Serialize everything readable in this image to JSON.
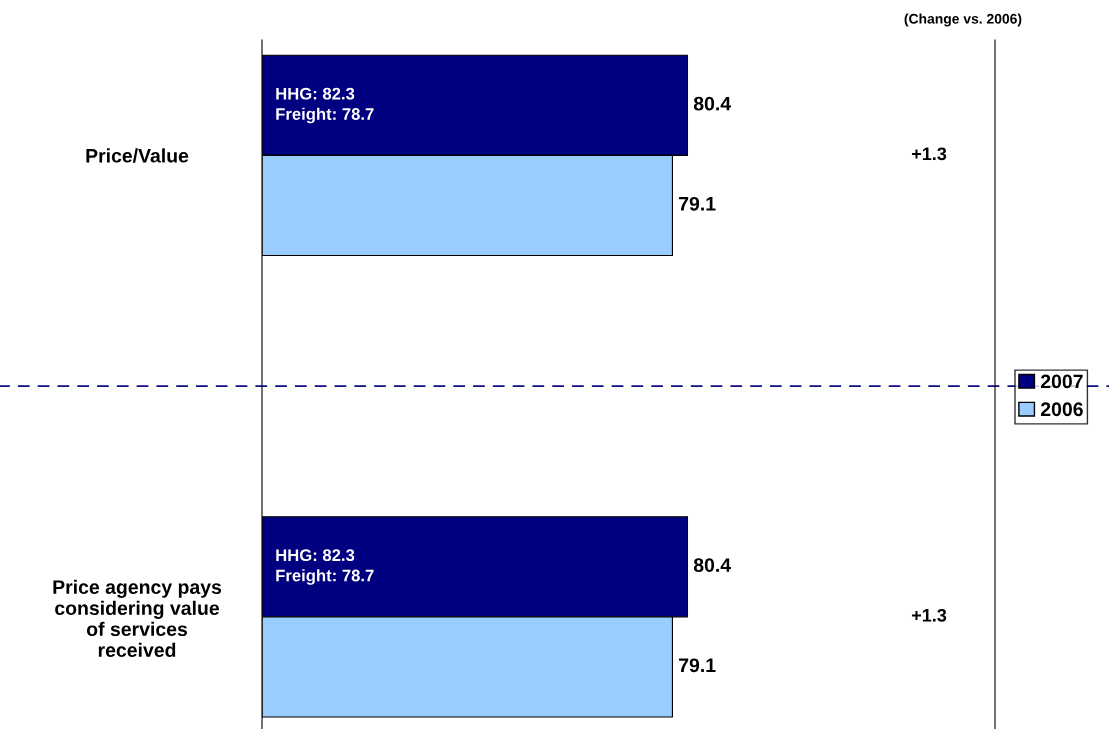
{
  "chart_data": {
    "type": "bar",
    "orientation": "horizontal",
    "categories": [
      "Price/Value",
      "Price agency pays\nconsidering value\nof services\nreceived"
    ],
    "series": [
      {
        "name": "2007",
        "color": "#000080",
        "values": [
          80.4,
          80.4
        ]
      },
      {
        "name": "2006",
        "color": "#99ccff",
        "values": [
          79.1,
          79.1
        ]
      }
    ],
    "xlim": [
      43.6,
      107
    ],
    "data_labels": true,
    "legend": "right",
    "grid": false,
    "title": "(Change vs. 2006)",
    "annotations": [
      "HHG: 82.3\nFreight: 78.7",
      "+1.3",
      "HHG: 82.3\nFreight: 78.7",
      "+1.3"
    ]
  }
}
